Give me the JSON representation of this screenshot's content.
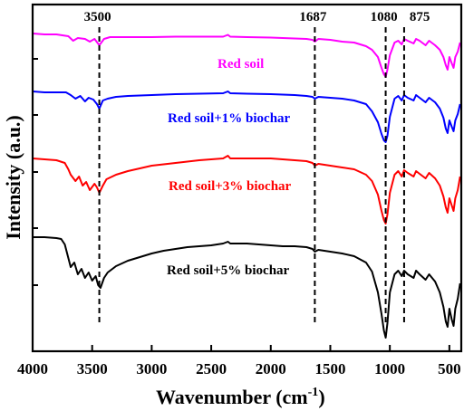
{
  "chart_data": {
    "type": "line",
    "xlabel": "Wavenumber (cm",
    "xlabel_sup": "-1",
    "xlabel_end": ")",
    "ylabel": "Intensity (a.u.)",
    "xlim": [
      4000,
      400
    ],
    "x_reversed": true,
    "xticks": [
      4000,
      3500,
      3000,
      2500,
      2000,
      1500,
      1000,
      500
    ],
    "xtick_labels": [
      "4000",
      "3500",
      "3000",
      "2500",
      "2000",
      "1500",
      "1000",
      "500"
    ],
    "y_tick_labels_shown": false,
    "grid": false,
    "peaks": [
      {
        "label": "3500",
        "x": 3440
      },
      {
        "label": "1687",
        "x": 1630
      },
      {
        "label": "1080",
        "x": 1035
      },
      {
        "label": "875",
        "x": 880
      }
    ],
    "series": [
      {
        "name": "Red soil",
        "color": "#ff00ff",
        "points": [
          [
            4000,
            32
          ],
          [
            3900,
            33
          ],
          [
            3800,
            33
          ],
          [
            3700,
            35
          ],
          [
            3660,
            40
          ],
          [
            3620,
            37
          ],
          [
            3560,
            38
          ],
          [
            3520,
            41
          ],
          [
            3480,
            38
          ],
          [
            3440,
            45
          ],
          [
            3400,
            38
          ],
          [
            3350,
            36
          ],
          [
            3200,
            36
          ],
          [
            3000,
            36
          ],
          [
            2800,
            35.5
          ],
          [
            2600,
            35.5
          ],
          [
            2400,
            35.5
          ],
          [
            2360,
            33.5
          ],
          [
            2340,
            35.5
          ],
          [
            2200,
            36
          ],
          [
            2000,
            36.5
          ],
          [
            1900,
            37
          ],
          [
            1800,
            37.5
          ],
          [
            1700,
            38
          ],
          [
            1650,
            39
          ],
          [
            1630,
            41
          ],
          [
            1600,
            38
          ],
          [
            1500,
            39
          ],
          [
            1400,
            41
          ],
          [
            1300,
            42
          ],
          [
            1200,
            46
          ],
          [
            1150,
            50
          ],
          [
            1100,
            58
          ],
          [
            1070,
            70
          ],
          [
            1050,
            77
          ],
          [
            1035,
            80
          ],
          [
            1020,
            72
          ],
          [
            1000,
            56
          ],
          [
            960,
            42
          ],
          [
            930,
            40
          ],
          [
            900,
            44
          ],
          [
            880,
            38
          ],
          [
            850,
            40
          ],
          [
            800,
            43
          ],
          [
            780,
            38
          ],
          [
            750,
            40
          ],
          [
            700,
            45
          ],
          [
            670,
            40
          ],
          [
            620,
            45
          ],
          [
            580,
            50
          ],
          [
            550,
            58
          ],
          [
            530,
            67
          ],
          [
            515,
            72
          ],
          [
            500,
            58
          ],
          [
            480,
            65
          ],
          [
            465,
            70
          ],
          [
            450,
            58
          ],
          [
            430,
            52
          ],
          [
            410,
            42
          ]
        ]
      },
      {
        "name": "Red soil+1% biochar",
        "color": "#0000ff",
        "points": [
          [
            4000,
            96
          ],
          [
            3900,
            97
          ],
          [
            3800,
            97
          ],
          [
            3720,
            97
          ],
          [
            3680,
            100
          ],
          [
            3640,
            104
          ],
          [
            3600,
            101
          ],
          [
            3560,
            107
          ],
          [
            3530,
            103
          ],
          [
            3490,
            105
          ],
          [
            3460,
            110
          ],
          [
            3440,
            115
          ],
          [
            3410,
            106
          ],
          [
            3370,
            104
          ],
          [
            3300,
            102
          ],
          [
            3200,
            101
          ],
          [
            3000,
            100
          ],
          [
            2800,
            99
          ],
          [
            2600,
            98.5
          ],
          [
            2400,
            98
          ],
          [
            2360,
            96
          ],
          [
            2340,
            98
          ],
          [
            2200,
            98.5
          ],
          [
            2000,
            99
          ],
          [
            1800,
            100
          ],
          [
            1700,
            101
          ],
          [
            1650,
            102
          ],
          [
            1630,
            104
          ],
          [
            1600,
            102
          ],
          [
            1500,
            103
          ],
          [
            1400,
            104
          ],
          [
            1300,
            106
          ],
          [
            1200,
            110
          ],
          [
            1150,
            118
          ],
          [
            1100,
            130
          ],
          [
            1070,
            143
          ],
          [
            1050,
            150
          ],
          [
            1035,
            152
          ],
          [
            1020,
            145
          ],
          [
            1000,
            124
          ],
          [
            960,
            104
          ],
          [
            930,
            101
          ],
          [
            900,
            106
          ],
          [
            880,
            100
          ],
          [
            850,
            103
          ],
          [
            800,
            106
          ],
          [
            780,
            100
          ],
          [
            750,
            103
          ],
          [
            700,
            108
          ],
          [
            670,
            103
          ],
          [
            620,
            108
          ],
          [
            580,
            115
          ],
          [
            550,
            125
          ],
          [
            530,
            137
          ],
          [
            515,
            142
          ],
          [
            500,
            128
          ],
          [
            480,
            135
          ],
          [
            465,
            140
          ],
          [
            450,
            128
          ],
          [
            430,
            121
          ],
          [
            410,
            110
          ]
        ]
      },
      {
        "name": "Red soil+3% biochar",
        "color": "#ff0000",
        "points": [
          [
            4000,
            170
          ],
          [
            3900,
            171
          ],
          [
            3800,
            172
          ],
          [
            3730,
            175
          ],
          [
            3700,
            182
          ],
          [
            3680,
            188
          ],
          [
            3640,
            195
          ],
          [
            3610,
            190
          ],
          [
            3580,
            200
          ],
          [
            3550,
            196
          ],
          [
            3520,
            205
          ],
          [
            3480,
            198
          ],
          [
            3460,
            202
          ],
          [
            3440,
            208
          ],
          [
            3410,
            200
          ],
          [
            3380,
            193
          ],
          [
            3300,
            188
          ],
          [
            3200,
            184
          ],
          [
            3100,
            181
          ],
          [
            3000,
            178
          ],
          [
            2800,
            175
          ],
          [
            2600,
            172
          ],
          [
            2400,
            170
          ],
          [
            2360,
            167
          ],
          [
            2340,
            170
          ],
          [
            2200,
            170
          ],
          [
            2000,
            170
          ],
          [
            1900,
            171
          ],
          [
            1800,
            172
          ],
          [
            1700,
            173
          ],
          [
            1650,
            175
          ],
          [
            1630,
            178
          ],
          [
            1600,
            176
          ],
          [
            1500,
            178
          ],
          [
            1400,
            180
          ],
          [
            1300,
            182
          ],
          [
            1200,
            188
          ],
          [
            1150,
            195
          ],
          [
            1100,
            210
          ],
          [
            1070,
            228
          ],
          [
            1050,
            238
          ],
          [
            1035,
            242
          ],
          [
            1020,
            232
          ],
          [
            1000,
            208
          ],
          [
            960,
            188
          ],
          [
            930,
            184
          ],
          [
            900,
            190
          ],
          [
            880,
            183
          ],
          [
            850,
            186
          ],
          [
            800,
            190
          ],
          [
            780,
            184
          ],
          [
            750,
            187
          ],
          [
            700,
            192
          ],
          [
            670,
            186
          ],
          [
            620,
            192
          ],
          [
            580,
            200
          ],
          [
            550,
            212
          ],
          [
            530,
            224
          ],
          [
            515,
            230
          ],
          [
            500,
            214
          ],
          [
            480,
            222
          ],
          [
            465,
            228
          ],
          [
            450,
            214
          ],
          [
            430,
            205
          ],
          [
            410,
            190
          ]
        ]
      },
      {
        "name": "Red soil+5% biochar",
        "color": "#000000",
        "points": [
          [
            4000,
            257
          ],
          [
            3900,
            257
          ],
          [
            3800,
            258
          ],
          [
            3760,
            259
          ],
          [
            3730,
            265
          ],
          [
            3700,
            280
          ],
          [
            3680,
            290
          ],
          [
            3650,
            285
          ],
          [
            3620,
            298
          ],
          [
            3590,
            292
          ],
          [
            3560,
            302
          ],
          [
            3530,
            296
          ],
          [
            3500,
            305
          ],
          [
            3470,
            300
          ],
          [
            3450,
            310
          ],
          [
            3430,
            313
          ],
          [
            3400,
            302
          ],
          [
            3370,
            296
          ],
          [
            3300,
            289
          ],
          [
            3200,
            283
          ],
          [
            3100,
            279
          ],
          [
            3000,
            275
          ],
          [
            2900,
            272
          ],
          [
            2800,
            270
          ],
          [
            2700,
            268
          ],
          [
            2600,
            267
          ],
          [
            2500,
            266
          ],
          [
            2400,
            264
          ],
          [
            2360,
            262
          ],
          [
            2340,
            264
          ],
          [
            2200,
            264
          ],
          [
            2100,
            265
          ],
          [
            2000,
            266
          ],
          [
            1900,
            267
          ],
          [
            1800,
            267
          ],
          [
            1700,
            268
          ],
          [
            1650,
            270
          ],
          [
            1630,
            273
          ],
          [
            1600,
            271
          ],
          [
            1500,
            273
          ],
          [
            1400,
            275
          ],
          [
            1300,
            278
          ],
          [
            1200,
            285
          ],
          [
            1150,
            295
          ],
          [
            1100,
            318
          ],
          [
            1070,
            342
          ],
          [
            1050,
            360
          ],
          [
            1035,
            368
          ],
          [
            1020,
            352
          ],
          [
            1000,
            318
          ],
          [
            960,
            298
          ],
          [
            930,
            294
          ],
          [
            900,
            300
          ],
          [
            880,
            294
          ],
          [
            850,
            298
          ],
          [
            800,
            302
          ],
          [
            780,
            294
          ],
          [
            750,
            298
          ],
          [
            700,
            304
          ],
          [
            670,
            298
          ],
          [
            620,
            306
          ],
          [
            580,
            318
          ],
          [
            550,
            334
          ],
          [
            530,
            350
          ],
          [
            515,
            356
          ],
          [
            500,
            336
          ],
          [
            480,
            348
          ],
          [
            465,
            355
          ],
          [
            450,
            336
          ],
          [
            430,
            325
          ],
          [
            410,
            308
          ]
        ]
      }
    ]
  }
}
